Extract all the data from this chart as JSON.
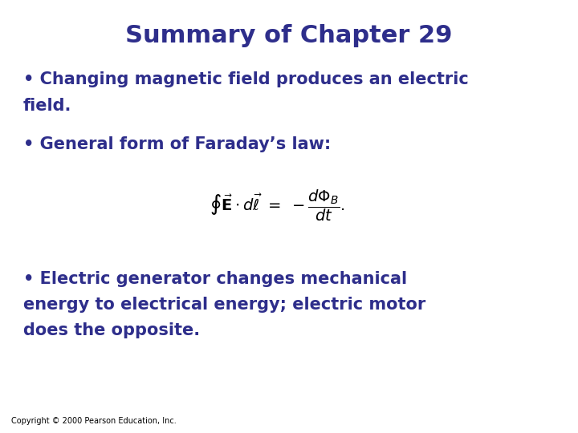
{
  "title": "Summary of Chapter 29",
  "title_color": "#2E2E8B",
  "title_fontsize": 22,
  "background_color": "#FFFFFF",
  "bullet1_line1": "• Changing magnetic field produces an electric",
  "bullet1_line2": "field.",
  "bullet2": "• General form of Faraday’s law:",
  "bullet3_line1": "• Electric generator changes mechanical",
  "bullet3_line2": "energy to electrical energy; electric motor",
  "bullet3_line3": "does the opposite.",
  "copyright": "Copyright © 2000 Pearson Education, Inc.",
  "text_color": "#2E2E8B",
  "text_fontsize": 15,
  "equation_fontsize": 14,
  "copyright_fontsize": 7
}
